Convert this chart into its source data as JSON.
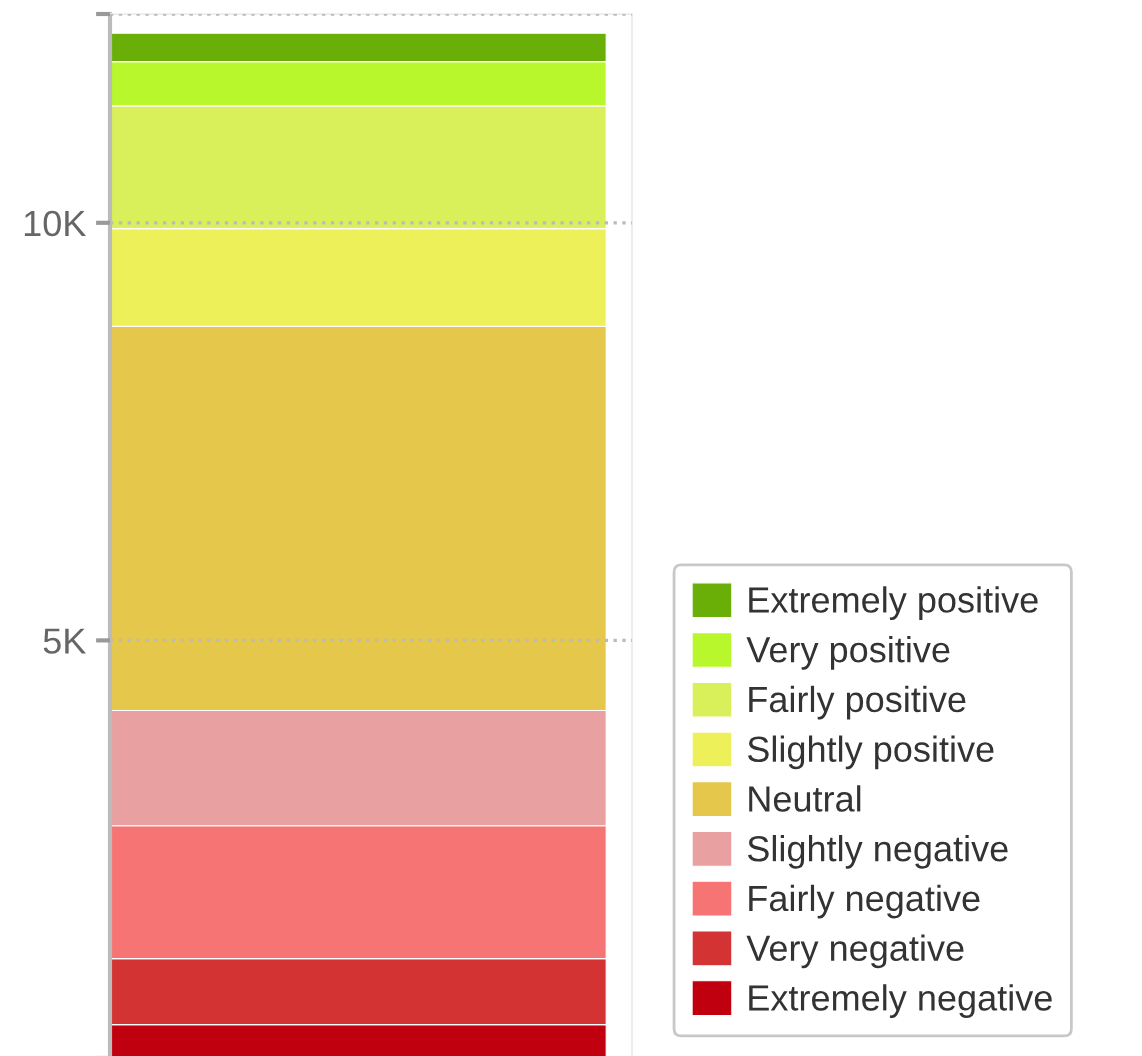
{
  "chart_data": {
    "type": "bar",
    "stacked": true,
    "categories": [
      null
    ],
    "series": [
      {
        "name": "Extremely negative",
        "color": "#c0000f",
        "values": [
          400
        ]
      },
      {
        "name": "Very negative",
        "color": "#d33333",
        "values": [
          790
        ]
      },
      {
        "name": "Fairly negative",
        "color": "#f77474",
        "values": [
          1590
        ]
      },
      {
        "name": "Slightly negative",
        "color": "#e8a0a0",
        "values": [
          1380
        ]
      },
      {
        "name": "Neutral",
        "color": "#e5c74c",
        "values": [
          4600
        ]
      },
      {
        "name": "Slightly positive",
        "color": "#eef05a",
        "values": [
          1170
        ]
      },
      {
        "name": "Fairly positive",
        "color": "#d9f05a",
        "values": [
          1470
        ]
      },
      {
        "name": "Very positive",
        "color": "#b8f72c",
        "values": [
          530
        ]
      },
      {
        "name": "Extremely positive",
        "color": "#6aaf08",
        "values": [
          340
        ]
      }
    ],
    "ylim": [
      0,
      12500
    ],
    "yticks": [
      {
        "value": 0,
        "label": null
      },
      {
        "value": 5000,
        "label": "5K"
      },
      {
        "value": 10000,
        "label": "10K"
      },
      {
        "value": 12500,
        "label": null
      }
    ],
    "grid": "y",
    "legend": "right"
  }
}
